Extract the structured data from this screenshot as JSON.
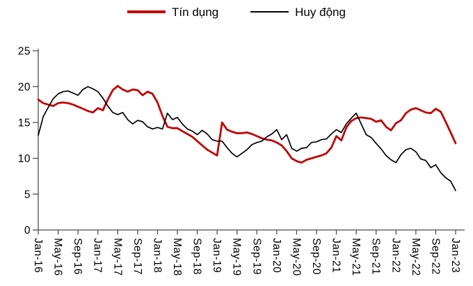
{
  "legend": {
    "series1_label": "Tín dụng",
    "series2_label": "Huy động"
  },
  "chart_data": {
    "type": "line",
    "title": "",
    "xlabel": "",
    "ylabel": "",
    "ylim": [
      0,
      25
    ],
    "y_ticks": [
      0,
      5,
      10,
      15,
      20,
      25
    ],
    "grid": false,
    "legend_position": "top",
    "x_tick_every": 4,
    "x_tick_labels": [
      "Jan-16",
      "May-16",
      "Sep-16",
      "Jan-17",
      "May-17",
      "Sep-17",
      "Jan-18",
      "May-18",
      "Sep-18",
      "Jan-19",
      "May-19",
      "Sep-19",
      "Jan-20",
      "May-20",
      "Sep-20",
      "Jan-21",
      "May-21",
      "Sep-21",
      "Jan-22",
      "May-22",
      "Sep-22",
      "Jan-23"
    ],
    "months": [
      "Jan-16",
      "Feb-16",
      "Mar-16",
      "Apr-16",
      "May-16",
      "Jun-16",
      "Jul-16",
      "Aug-16",
      "Sep-16",
      "Oct-16",
      "Nov-16",
      "Dec-16",
      "Jan-17",
      "Feb-17",
      "Mar-17",
      "Apr-17",
      "May-17",
      "Jun-17",
      "Jul-17",
      "Aug-17",
      "Sep-17",
      "Oct-17",
      "Nov-17",
      "Dec-17",
      "Jan-18",
      "Feb-18",
      "Mar-18",
      "Apr-18",
      "May-18",
      "Jun-18",
      "Jul-18",
      "Aug-18",
      "Sep-18",
      "Oct-18",
      "Nov-18",
      "Dec-18",
      "Jan-19",
      "Feb-19",
      "Mar-19",
      "Apr-19",
      "May-19",
      "Jun-19",
      "Jul-19",
      "Aug-19",
      "Sep-19",
      "Oct-19",
      "Nov-19",
      "Dec-19",
      "Jan-20",
      "Feb-20",
      "Mar-20",
      "Apr-20",
      "May-20",
      "Jun-20",
      "Jul-20",
      "Aug-20",
      "Sep-20",
      "Oct-20",
      "Nov-20",
      "Dec-20",
      "Jan-21",
      "Feb-21",
      "Mar-21",
      "Apr-21",
      "May-21",
      "Jun-21",
      "Jul-21",
      "Aug-21",
      "Sep-21",
      "Oct-21",
      "Nov-21",
      "Dec-21",
      "Jan-22",
      "Feb-22",
      "Mar-22",
      "Apr-22",
      "May-22",
      "Jun-22",
      "Jul-22",
      "Aug-22",
      "Sep-22",
      "Oct-22",
      "Nov-22",
      "Dec-22",
      "Jan-23"
    ],
    "series": [
      {
        "name": "Tín dụng",
        "color": "#c00000",
        "values": [
          18.2,
          17.7,
          17.5,
          17.3,
          17.7,
          17.8,
          17.7,
          17.5,
          17.2,
          16.9,
          16.6,
          16.4,
          17.0,
          16.7,
          18.2,
          19.5,
          20.1,
          19.6,
          19.3,
          19.6,
          19.5,
          18.8,
          19.3,
          19.0,
          17.8,
          15.9,
          14.4,
          14.2,
          14.2,
          13.8,
          13.4,
          13.0,
          12.4,
          11.8,
          11.2,
          10.8,
          10.4,
          15.0,
          14.0,
          13.7,
          13.5,
          13.5,
          13.6,
          13.4,
          13.1,
          12.8,
          12.6,
          12.5,
          12.2,
          11.8,
          11.0,
          10.0,
          9.6,
          9.4,
          9.8,
          10.0,
          10.2,
          10.4,
          10.7,
          11.5,
          13.1,
          12.5,
          14.3,
          15.2,
          15.6,
          15.7,
          15.6,
          15.5,
          15.1,
          15.3,
          14.4,
          13.9,
          14.9,
          15.3,
          16.3,
          16.8,
          17.0,
          16.7,
          16.4,
          16.3,
          16.9,
          16.5,
          15.1,
          13.6,
          12.1
        ]
      },
      {
        "name": "Huy động",
        "color": "#000000",
        "values": [
          13.2,
          15.8,
          17.1,
          18.3,
          19.0,
          19.3,
          19.4,
          19.1,
          18.8,
          19.6,
          20.0,
          19.7,
          19.3,
          18.4,
          17.3,
          16.4,
          16.1,
          16.4,
          15.4,
          14.8,
          15.3,
          15.1,
          14.4,
          14.1,
          14.3,
          14.1,
          16.3,
          15.4,
          15.7,
          14.8,
          14.1,
          13.8,
          13.3,
          13.9,
          13.4,
          12.6,
          12.4,
          12.4,
          11.5,
          10.7,
          10.2,
          10.7,
          11.2,
          11.9,
          12.2,
          12.4,
          13.0,
          13.4,
          14.0,
          12.6,
          13.3,
          11.4,
          11.0,
          11.4,
          11.5,
          12.2,
          12.3,
          12.6,
          12.7,
          13.4,
          14.0,
          13.6,
          14.8,
          15.6,
          16.3,
          14.8,
          13.3,
          12.9,
          12.1,
          11.3,
          10.4,
          9.8,
          9.4,
          10.5,
          11.2,
          11.4,
          10.9,
          9.9,
          9.7,
          8.7,
          9.1,
          8.0,
          7.3,
          6.8,
          5.5
        ]
      }
    ],
    "axis_color": "#4d4d4d"
  }
}
